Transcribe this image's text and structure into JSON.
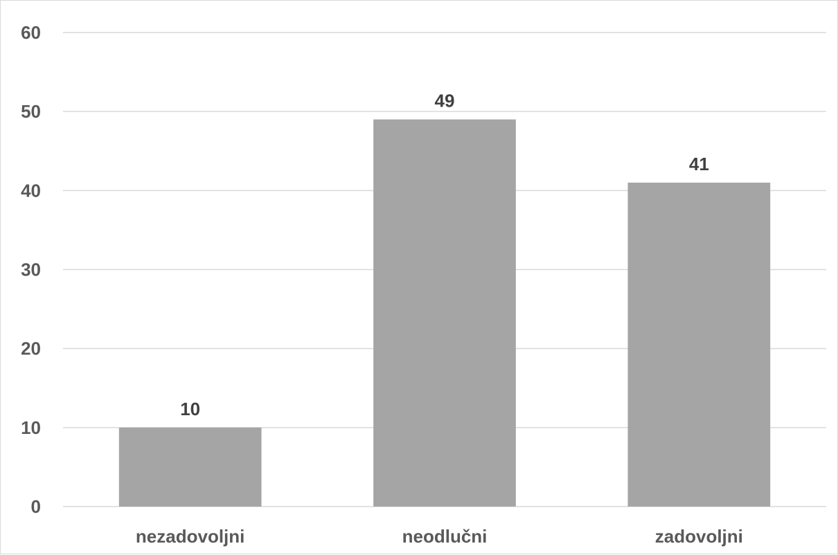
{
  "chart_data": {
    "type": "bar",
    "title": "",
    "xlabel": "",
    "ylabel": "",
    "categories": [
      "nezadovoljni",
      "neodlučni",
      "zadovoljni"
    ],
    "values": [
      10,
      49,
      41
    ],
    "data_labels": [
      "10",
      "49",
      "41"
    ],
    "ylim": [
      0,
      60
    ],
    "yticks": [
      0,
      10,
      20,
      30,
      40,
      50,
      60
    ],
    "ytick_labels": [
      "0",
      "10",
      "20",
      "30",
      "40",
      "50",
      "60"
    ],
    "grid": true,
    "legend": "none",
    "colors": {
      "bar": "#a5a5a5",
      "grid": "#d9d9d9",
      "axis_text": "#595959",
      "data_label_text": "#404040"
    }
  }
}
